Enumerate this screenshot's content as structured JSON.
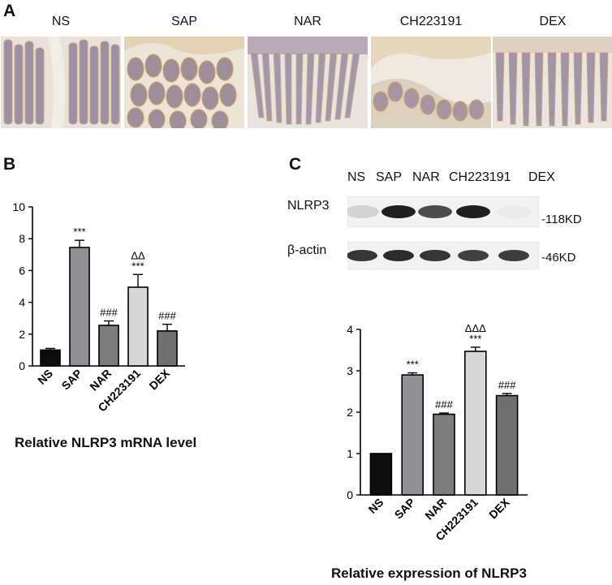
{
  "panel_a": {
    "letter": "A",
    "groups": [
      "NS",
      "SAP",
      "NAR",
      "CH223191",
      "DEX"
    ]
  },
  "panel_b": {
    "letter": "B",
    "caption": "Relative NLRP3 mRNA level"
  },
  "panel_c": {
    "letter": "C",
    "lanes": [
      "NS",
      "SAP",
      "NAR",
      "CH223191",
      "DEX"
    ],
    "rows": [
      {
        "label": "NLRP3",
        "size": "-118KD",
        "intensity": [
          0.15,
          0.95,
          0.75,
          0.95,
          0.05
        ]
      },
      {
        "label": "β-actin",
        "size": "-46KD",
        "intensity": [
          0.85,
          0.9,
          0.85,
          0.8,
          0.82
        ]
      }
    ],
    "caption": "Relative expression of NLRP3"
  },
  "colors": {
    "black": "#0d0d0d",
    "dark_gray": "#8e8e92",
    "mid_gray": "#7e7e7e",
    "light_gray": "#d6d6d6",
    "slate_gray": "#6a6a6a"
  },
  "chart_data": [
    {
      "type": "bar",
      "panel": "B",
      "categories": [
        "NS",
        "SAP",
        "NAR",
        "CH223191",
        "DEX"
      ],
      "values": [
        1.0,
        7.45,
        2.55,
        4.95,
        2.2
      ],
      "errors": [
        0.1,
        0.45,
        0.28,
        0.8,
        0.42
      ],
      "colors": [
        "#0d0d0d",
        "#909094",
        "#7d7d7d",
        "#d7d7d7",
        "#707070"
      ],
      "annotations": [
        {
          "category": "SAP",
          "lines": [
            "***"
          ]
        },
        {
          "category": "NAR",
          "lines": [
            "###"
          ]
        },
        {
          "category": "CH223191",
          "lines": [
            "ΔΔ",
            "***"
          ]
        },
        {
          "category": "DEX",
          "lines": [
            "###"
          ]
        }
      ],
      "ylim": [
        0,
        10
      ],
      "yticks": [
        0,
        2,
        4,
        6,
        8,
        10
      ]
    },
    {
      "type": "bar",
      "panel": "C",
      "categories": [
        "NS",
        "SAP",
        "NAR",
        "CH223191",
        "DEX"
      ],
      "values": [
        1.0,
        2.9,
        1.95,
        3.47,
        2.4
      ],
      "errors": [
        0.0,
        0.05,
        0.03,
        0.1,
        0.05
      ],
      "colors": [
        "#0d0d0d",
        "#909094",
        "#7d7d7d",
        "#d7d7d7",
        "#707070"
      ],
      "annotations": [
        {
          "category": "SAP",
          "lines": [
            "***"
          ]
        },
        {
          "category": "NAR",
          "lines": [
            "###"
          ]
        },
        {
          "category": "CH223191",
          "lines": [
            "ΔΔΔ",
            "***"
          ]
        },
        {
          "category": "DEX",
          "lines": [
            "###"
          ]
        }
      ],
      "ylim": [
        0,
        4
      ],
      "yticks": [
        0,
        1,
        2,
        3,
        4
      ]
    }
  ]
}
